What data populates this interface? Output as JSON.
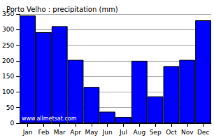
{
  "chart_data": {
    "type": "bar",
    "title": "Porto Velho : precipitation (mm)",
    "categories": [
      "Jan",
      "Feb",
      "Mar",
      "Apr",
      "May",
      "Jun",
      "Jul",
      "Aug",
      "Sep",
      "Oct",
      "Nov",
      "Dec"
    ],
    "values": [
      345,
      292,
      311,
      203,
      116,
      37,
      20,
      200,
      86,
      183,
      203,
      330
    ],
    "color": "#0000ff",
    "ylim": [
      0,
      350
    ],
    "yticks": [
      0,
      50,
      100,
      150,
      200,
      250,
      300,
      350
    ],
    "grid": true,
    "annotations": [
      "www.allmetsat.com"
    ]
  }
}
